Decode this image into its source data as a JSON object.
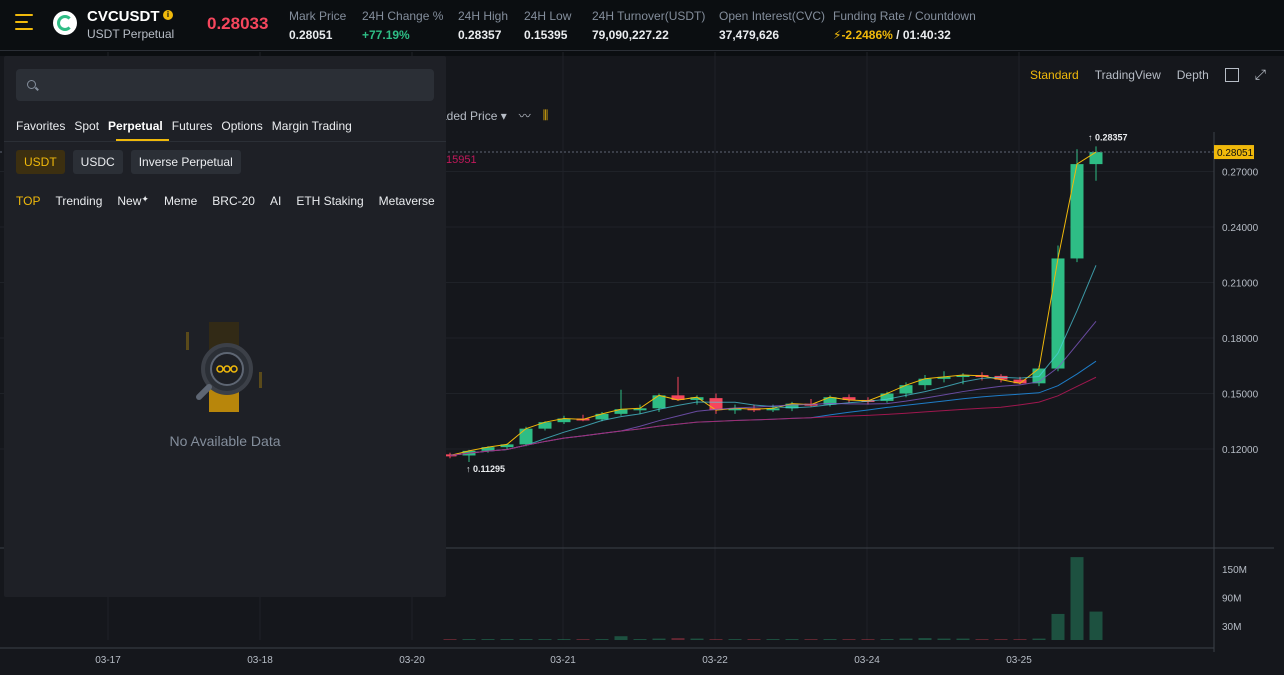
{
  "header": {
    "symbol": "CVCUSDT",
    "info_badge": "i",
    "subtitle": "USDT Perpetual",
    "last_price": "0.28033",
    "stats": [
      {
        "label": "Mark Price",
        "value": "0.28051"
      },
      {
        "label": "24H Change %",
        "value": "+77.19%"
      },
      {
        "label": "24H High",
        "value": "0.28357"
      },
      {
        "label": "24H Low",
        "value": "0.15395"
      },
      {
        "label": "24H Turnover(USDT)",
        "value": "79,090,227.22"
      },
      {
        "label": "Open Interest(CVC)",
        "value": "37,479,626"
      },
      {
        "label": "Funding Rate / Countdown",
        "value_rate": "-2.2486%",
        "value_countdown": "/ 01:40:32"
      }
    ]
  },
  "view_tabs": {
    "standard": "Standard",
    "tradingview": "TradingView",
    "depth": "Depth"
  },
  "toolbar": {
    "price_type": "aded Price ▾",
    "partial_value": "15951"
  },
  "panel": {
    "search_placeholder": "",
    "market_tabs": [
      "Favorites",
      "Spot",
      "Perpetual",
      "Futures",
      "Options",
      "Margin Trading"
    ],
    "quote_tabs": [
      "USDT",
      "USDC",
      "Inverse Perpetual"
    ],
    "category_tabs": [
      "TOP",
      "Trending",
      "New",
      "Meme",
      "BRC-20",
      "AI",
      "ETH Staking",
      "Metaverse"
    ],
    "empty_text": "No Available Data"
  },
  "colors": {
    "up": "#2ebd85",
    "down": "#f6465d",
    "accent": "#f0b90b",
    "bg": "#15171c"
  },
  "chart_data": {
    "type": "candlestick",
    "price_axis_ticks": [
      "0.27000",
      "0.24000",
      "0.21000",
      "0.18000",
      "0.15000",
      "0.12000"
    ],
    "volume_axis_ticks": [
      "150M",
      "90M",
      "30M"
    ],
    "x_ticks": [
      "03-17",
      "03-18",
      "03-20",
      "03-21",
      "03-22",
      "03-24",
      "03-25"
    ],
    "current_price_label": "0.28051",
    "high_label": "0.28357",
    "low_label": "0.11295",
    "candles": [
      {
        "o": 0.1171,
        "h": 0.118,
        "l": 0.115,
        "c": 0.1165
      },
      {
        "o": 0.1165,
        "h": 0.1195,
        "l": 0.113,
        "c": 0.119
      },
      {
        "o": 0.119,
        "h": 0.1215,
        "l": 0.118,
        "c": 0.121
      },
      {
        "o": 0.121,
        "h": 0.123,
        "l": 0.1195,
        "c": 0.1225
      },
      {
        "o": 0.1225,
        "h": 0.132,
        "l": 0.1215,
        "c": 0.131
      },
      {
        "o": 0.131,
        "h": 0.135,
        "l": 0.13,
        "c": 0.1345
      },
      {
        "o": 0.1345,
        "h": 0.138,
        "l": 0.1335,
        "c": 0.1365
      },
      {
        "o": 0.1365,
        "h": 0.1385,
        "l": 0.135,
        "c": 0.136
      },
      {
        "o": 0.136,
        "h": 0.14,
        "l": 0.135,
        "c": 0.139
      },
      {
        "o": 0.139,
        "h": 0.152,
        "l": 0.138,
        "c": 0.1415
      },
      {
        "o": 0.1415,
        "h": 0.144,
        "l": 0.139,
        "c": 0.142
      },
      {
        "o": 0.142,
        "h": 0.15,
        "l": 0.14,
        "c": 0.149
      },
      {
        "o": 0.149,
        "h": 0.159,
        "l": 0.146,
        "c": 0.1465
      },
      {
        "o": 0.1465,
        "h": 0.149,
        "l": 0.144,
        "c": 0.148
      },
      {
        "o": 0.1475,
        "h": 0.15,
        "l": 0.139,
        "c": 0.141
      },
      {
        "o": 0.141,
        "h": 0.144,
        "l": 0.139,
        "c": 0.142
      },
      {
        "o": 0.142,
        "h": 0.144,
        "l": 0.14,
        "c": 0.1415
      },
      {
        "o": 0.1415,
        "h": 0.144,
        "l": 0.14,
        "c": 0.142
      },
      {
        "o": 0.142,
        "h": 0.1455,
        "l": 0.1405,
        "c": 0.1445
      },
      {
        "o": 0.1445,
        "h": 0.147,
        "l": 0.143,
        "c": 0.144
      },
      {
        "o": 0.144,
        "h": 0.149,
        "l": 0.143,
        "c": 0.148
      },
      {
        "o": 0.148,
        "h": 0.1495,
        "l": 0.145,
        "c": 0.1465
      },
      {
        "o": 0.1465,
        "h": 0.148,
        "l": 0.144,
        "c": 0.146
      },
      {
        "o": 0.146,
        "h": 0.151,
        "l": 0.145,
        "c": 0.15
      },
      {
        "o": 0.15,
        "h": 0.156,
        "l": 0.148,
        "c": 0.1545
      },
      {
        "o": 0.1545,
        "h": 0.16,
        "l": 0.152,
        "c": 0.158
      },
      {
        "o": 0.158,
        "h": 0.162,
        "l": 0.156,
        "c": 0.159
      },
      {
        "o": 0.159,
        "h": 0.161,
        "l": 0.155,
        "c": 0.16
      },
      {
        "o": 0.16,
        "h": 0.1615,
        "l": 0.157,
        "c": 0.1595
      },
      {
        "o": 0.1595,
        "h": 0.1605,
        "l": 0.156,
        "c": 0.1575
      },
      {
        "o": 0.1575,
        "h": 0.159,
        "l": 0.155,
        "c": 0.1555
      },
      {
        "o": 0.1555,
        "h": 0.165,
        "l": 0.154,
        "c": 0.1635
      },
      {
        "o": 0.1635,
        "h": 0.23,
        "l": 0.162,
        "c": 0.223
      },
      {
        "o": 0.223,
        "h": 0.282,
        "l": 0.221,
        "c": 0.274
      },
      {
        "o": 0.274,
        "h": 0.2836,
        "l": 0.265,
        "c": 0.2805
      }
    ],
    "volumes_m": [
      2,
      2,
      2,
      2,
      2,
      2,
      2,
      2,
      2,
      8,
      2,
      3,
      4,
      3,
      2,
      2,
      2,
      2,
      2,
      2,
      2,
      2,
      2,
      2,
      3,
      4,
      3,
      3,
      2,
      2,
      2,
      3,
      55,
      175,
      60
    ]
  }
}
